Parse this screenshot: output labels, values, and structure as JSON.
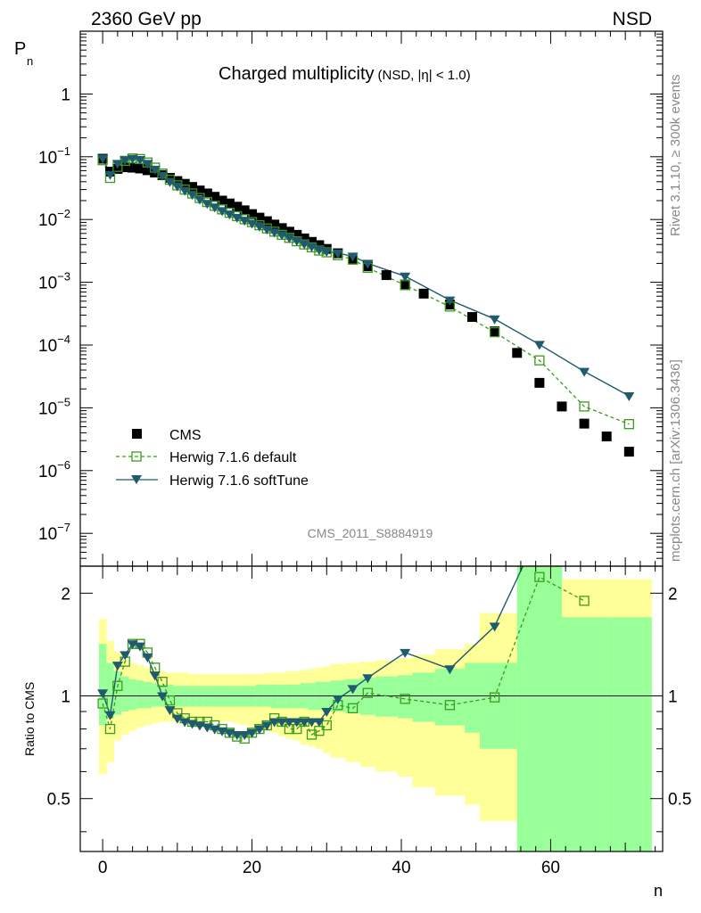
{
  "header": {
    "energy_label": "2360 GeV pp",
    "process_label": "NSD"
  },
  "side_text": {
    "rivet": "Rivet 3.1.10, ≥ 300k events",
    "mcplots": "mcplots.cern.ch [arXiv:1306.3436]"
  },
  "colors": {
    "cms": "#000000",
    "default": "#3c9a1e",
    "softtune": "#1f5a6e",
    "band_outer": "#ffff99",
    "band_inner": "#99ff99"
  },
  "chart_data": [
    {
      "type": "scatter",
      "title": "Charged multiplicity",
      "subtitle": "(NSD, |η| < 1.0)",
      "ylabel": "P",
      "ylabel_sub": "n",
      "yscale": "log",
      "ylim": [
        3e-08,
        10
      ],
      "xlim": [
        -3,
        75
      ],
      "y_tick_labels": [
        "1",
        "10",
        "10",
        "10",
        "10",
        "10",
        "10",
        "10"
      ],
      "y_tick_exponents": [
        "",
        "−1",
        "−2",
        "−3",
        "−4",
        "−5",
        "−6",
        "−7"
      ],
      "watermark": "CMS_2011_S8884919",
      "legend": {
        "position": "bottom-left",
        "entries": [
          "CMS",
          "Herwig 7.1.6 default",
          "Herwig 7.1.6 softTune"
        ]
      },
      "series": [
        {
          "name": "CMS",
          "x": [
            0,
            1,
            2,
            3,
            4,
            5,
            6,
            7,
            8,
            9,
            10,
            11,
            12,
            13,
            14,
            15,
            16,
            17,
            18,
            19,
            20,
            21,
            22,
            23,
            24,
            25,
            26,
            27,
            28,
            29,
            30,
            31.5,
            33.5,
            35.5,
            38,
            40.5,
            43,
            46.5,
            49.5,
            52.5,
            55.5,
            58.5,
            61.5,
            64.5,
            67.5,
            70.5
          ],
          "y": [
            0.093,
            0.058,
            0.064,
            0.068,
            0.067,
            0.065,
            0.061,
            0.056,
            0.051,
            0.046,
            0.041,
            0.037,
            0.033,
            0.029,
            0.026,
            0.023,
            0.02,
            0.018,
            0.016,
            0.014,
            0.0122,
            0.0107,
            0.0094,
            0.0083,
            0.0073,
            0.0064,
            0.0057,
            0.005,
            0.0044,
            0.0039,
            0.0034,
            0.0029,
            0.0023,
            0.0018,
            0.0013,
            0.00092,
            0.00066,
            0.00044,
            0.00028,
            0.000165,
            7.5e-05,
            2.5e-05,
            1.05e-05,
            5.6e-06,
            3.5e-06,
            2e-06
          ]
        },
        {
          "name": "Herwig 7.1.6 default",
          "x": [
            0,
            1,
            2,
            3,
            4,
            5,
            6,
            7,
            8,
            9,
            10,
            11,
            12,
            13,
            14,
            15,
            16,
            17,
            18,
            19,
            20,
            21,
            22,
            23,
            24,
            25,
            26,
            27,
            28,
            29,
            30,
            31.5,
            33.5,
            35.5,
            40.5,
            46.5,
            52.5,
            58.5,
            64.5,
            70.5
          ],
          "y": [
            0.088,
            0.046,
            0.069,
            0.086,
            0.094,
            0.092,
            0.081,
            0.067,
            0.054,
            0.043,
            0.035,
            0.03,
            0.026,
            0.022,
            0.019,
            0.0165,
            0.0145,
            0.0128,
            0.0113,
            0.0101,
            0.0091,
            0.0081,
            0.0072,
            0.0064,
            0.0057,
            0.0051,
            0.0045,
            0.004,
            0.0036,
            0.0032,
            0.003,
            0.0027,
            0.0023,
            0.0017,
            0.0009,
            0.00041,
            0.00016,
            5.7e-05,
            1.05e-05,
            5.5e-06
          ]
        },
        {
          "name": "Herwig 7.1.6 softTune",
          "x": [
            0,
            1,
            2,
            3,
            4,
            5,
            6,
            7,
            8,
            9,
            10,
            11,
            12,
            13,
            14,
            15,
            16,
            17,
            18,
            19,
            20,
            21,
            22,
            23,
            24,
            25,
            26,
            27,
            28,
            29,
            30,
            31.5,
            33.5,
            35.5,
            40.5,
            46.5,
            52.5,
            58.5,
            64.5,
            70.5
          ],
          "y": [
            0.095,
            0.052,
            0.078,
            0.089,
            0.094,
            0.09,
            0.078,
            0.063,
            0.05,
            0.04,
            0.034,
            0.029,
            0.025,
            0.021,
            0.018,
            0.0158,
            0.0138,
            0.0122,
            0.0108,
            0.0097,
            0.0087,
            0.0078,
            0.007,
            0.0063,
            0.0057,
            0.0051,
            0.0046,
            0.0041,
            0.0037,
            0.0033,
            0.0031,
            0.0029,
            0.0026,
            0.002,
            0.00125,
            0.00052,
            0.00026,
            0.000102,
            3.8e-05,
            1.55e-05
          ]
        }
      ]
    },
    {
      "type": "line",
      "ylabel": "Ratio to CMS",
      "xlabel": "n",
      "yscale": "log",
      "ylim": [
        0.35,
        2.4
      ],
      "xlim": [
        -3,
        75
      ],
      "x_ticks": [
        0,
        20,
        40,
        60
      ],
      "y_ticks": [
        0.5,
        1,
        2
      ],
      "y_tick_labels": [
        "0.5",
        "1",
        "2"
      ],
      "reference_line": 1,
      "uncertainty_bands": {
        "x_edges": [
          -0.5,
          0.5,
          1.5,
          2.5,
          3.5,
          4.5,
          5.5,
          6.5,
          7.5,
          8.5,
          9.5,
          10.5,
          11.5,
          12.5,
          13.5,
          14.5,
          15.5,
          16.5,
          17.5,
          18.5,
          19.5,
          20.5,
          21.5,
          22.5,
          23.5,
          24.5,
          25.5,
          26.5,
          27.5,
          28.5,
          29.5,
          30.5,
          32.5,
          34.5,
          36.5,
          39.5,
          41.5,
          44.5,
          48.5,
          50.5,
          55.5,
          61.5,
          67.5,
          73.5
        ],
        "outer_hi": [
          1.68,
          1.45,
          1.35,
          1.28,
          1.25,
          1.23,
          1.21,
          1.19,
          1.18,
          1.17,
          1.17,
          1.17,
          1.16,
          1.16,
          1.16,
          1.16,
          1.16,
          1.16,
          1.16,
          1.16,
          1.16,
          1.16,
          1.17,
          1.17,
          1.17,
          1.18,
          1.18,
          1.19,
          1.2,
          1.21,
          1.22,
          1.24,
          1.25,
          1.26,
          1.27,
          1.29,
          1.32,
          1.37,
          1.42,
          1.75,
          1.75,
          2.2,
          2.2
        ],
        "outer_lo": [
          0.59,
          0.64,
          0.74,
          0.77,
          0.79,
          0.81,
          0.82,
          0.83,
          0.84,
          0.84,
          0.84,
          0.84,
          0.84,
          0.84,
          0.84,
          0.84,
          0.84,
          0.84,
          0.83,
          0.82,
          0.81,
          0.8,
          0.79,
          0.78,
          0.76,
          0.75,
          0.74,
          0.72,
          0.71,
          0.7,
          0.68,
          0.66,
          0.64,
          0.62,
          0.6,
          0.58,
          0.54,
          0.51,
          0.48,
          0.43,
          0.3,
          0.3,
          0.3
        ],
        "inner_hi": [
          1.42,
          1.25,
          1.18,
          1.14,
          1.12,
          1.11,
          1.1,
          1.09,
          1.08,
          1.08,
          1.07,
          1.07,
          1.07,
          1.07,
          1.07,
          1.07,
          1.07,
          1.07,
          1.07,
          1.07,
          1.07,
          1.08,
          1.08,
          1.08,
          1.08,
          1.08,
          1.08,
          1.09,
          1.09,
          1.1,
          1.1,
          1.11,
          1.12,
          1.13,
          1.14,
          1.15,
          1.17,
          1.2,
          1.25,
          1.25,
          2.5,
          1.7,
          1.7
        ],
        "inner_lo": [
          0.82,
          0.86,
          0.88,
          0.9,
          0.91,
          0.92,
          0.92,
          0.93,
          0.93,
          0.93,
          0.93,
          0.93,
          0.93,
          0.93,
          0.93,
          0.93,
          0.93,
          0.93,
          0.93,
          0.93,
          0.93,
          0.93,
          0.93,
          0.92,
          0.92,
          0.92,
          0.92,
          0.92,
          0.91,
          0.91,
          0.91,
          0.9,
          0.89,
          0.88,
          0.87,
          0.86,
          0.84,
          0.82,
          0.78,
          0.7,
          0.3,
          0.3,
          0.3
        ]
      },
      "series": [
        {
          "name": "Herwig 7.1.6 default",
          "x": [
            0,
            1,
            2,
            3,
            4,
            5,
            6,
            7,
            8,
            9,
            10,
            11,
            12,
            13,
            14,
            15,
            16,
            17,
            18,
            19,
            20,
            21,
            22,
            23,
            24,
            25,
            26,
            27,
            28,
            29,
            30,
            31.5,
            33.5,
            35.5,
            40.5,
            46.5,
            52.5,
            58.5,
            64.5
          ],
          "y": [
            0.95,
            0.8,
            1.07,
            1.26,
            1.42,
            1.42,
            1.34,
            1.21,
            1.1,
            0.97,
            0.89,
            0.86,
            0.84,
            0.84,
            0.84,
            0.82,
            0.8,
            0.78,
            0.76,
            0.75,
            0.78,
            0.8,
            0.82,
            0.86,
            0.84,
            0.8,
            0.8,
            0.84,
            0.77,
            0.79,
            0.82,
            0.94,
            0.92,
            1.02,
            0.98,
            0.94,
            0.99,
            2.23,
            1.9
          ]
        },
        {
          "name": "Herwig 7.1.6 softTune",
          "x": [
            0,
            1,
            2,
            3,
            4,
            5,
            6,
            7,
            8,
            9,
            10,
            11,
            12,
            13,
            14,
            15,
            16,
            17,
            18,
            19,
            20,
            21,
            22,
            23,
            24,
            25,
            26,
            27,
            28,
            29,
            30,
            31.5,
            33.5,
            35.5,
            40.5,
            46.5,
            52.5,
            56.3
          ],
          "y": [
            1.02,
            0.88,
            1.23,
            1.32,
            1.42,
            1.4,
            1.3,
            1.15,
            1.0,
            0.91,
            0.86,
            0.84,
            0.83,
            0.82,
            0.81,
            0.8,
            0.79,
            0.78,
            0.77,
            0.77,
            0.78,
            0.8,
            0.82,
            0.84,
            0.84,
            0.84,
            0.84,
            0.84,
            0.84,
            0.84,
            0.9,
            0.98,
            1.05,
            1.13,
            1.34,
            1.2,
            1.6,
            2.4
          ]
        }
      ]
    }
  ]
}
